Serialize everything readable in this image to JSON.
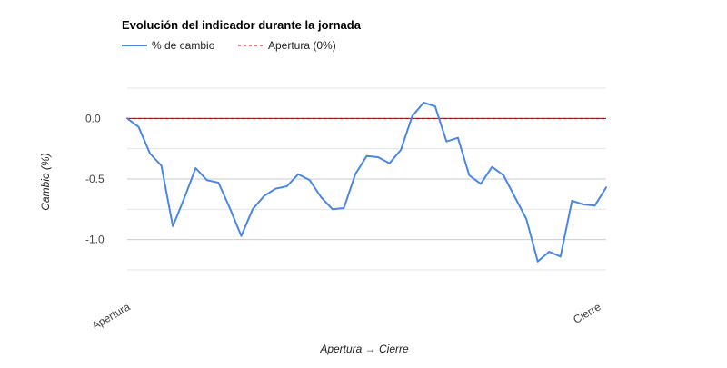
{
  "chart_data": {
    "type": "line",
    "title": "Evolución del indicador durante la jornada",
    "xlabel": "Apertura → Cierre",
    "ylabel": "Cambio (%)",
    "x_tick_labels": [
      "Apertura",
      "Cierre"
    ],
    "y_ticks": [
      0.0,
      -0.5,
      -1.0
    ],
    "y_tick_labels": [
      "0.0",
      "-0.5",
      "-1.0"
    ],
    "ylim": [
      -1.25,
      0.25
    ],
    "grid": true,
    "legend_position": "top-left",
    "series": [
      {
        "name": "% de cambio",
        "color": "#4a86e8",
        "style": "solid",
        "values": [
          0.0,
          -0.07,
          -0.29,
          -0.39,
          -0.89,
          -0.66,
          -0.41,
          -0.51,
          -0.53,
          -0.74,
          -0.97,
          -0.75,
          -0.64,
          -0.58,
          -0.56,
          -0.46,
          -0.51,
          -0.65,
          -0.75,
          -0.74,
          -0.46,
          -0.31,
          -0.32,
          -0.37,
          -0.26,
          0.02,
          0.13,
          0.1,
          -0.19,
          -0.16,
          -0.47,
          -0.54,
          -0.4,
          -0.47,
          -0.65,
          -0.83,
          -1.18,
          -1.1,
          -1.14,
          -0.68,
          -0.71,
          -0.72,
          -0.57
        ]
      },
      {
        "name": "Apertura (0%)",
        "color": "#cc0000",
        "style": "dashed",
        "values": [
          0.0,
          0.0
        ]
      }
    ]
  }
}
